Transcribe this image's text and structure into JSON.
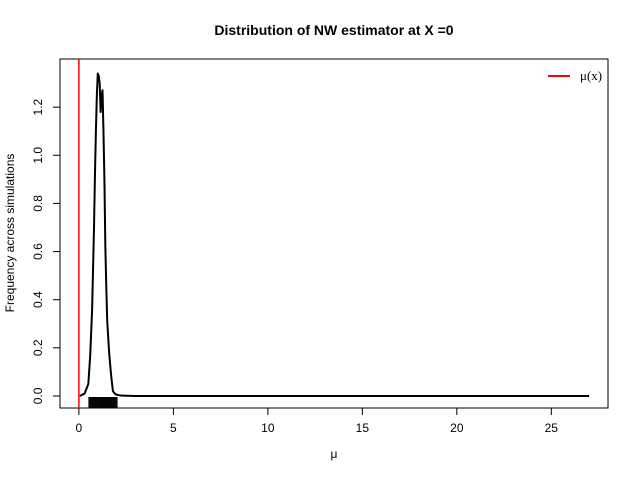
{
  "chart_data": {
    "type": "line",
    "title": "Distribution of NW estimator at X =0",
    "xlabel": "μ",
    "ylabel": "Frequency across simulations",
    "xlim": [
      -1,
      28
    ],
    "ylim": [
      -0.05,
      1.4
    ],
    "x_ticks": [
      0,
      5,
      10,
      15,
      20,
      25
    ],
    "y_ticks": [
      0.0,
      0.2,
      0.4,
      0.6,
      0.8,
      1.0,
      1.2
    ],
    "grid": false,
    "legend_position": "top-right",
    "series": [
      {
        "name": "",
        "color": "#000000",
        "x": [
          0.05,
          0.3,
          0.5,
          0.6,
          0.7,
          0.8,
          0.85,
          0.9,
          0.95,
          1.0,
          1.05,
          1.1,
          1.15,
          1.2,
          1.25,
          1.3,
          1.35,
          1.4,
          1.45,
          1.5,
          1.6,
          1.7,
          1.8,
          1.9,
          2.0,
          2.2,
          2.5,
          3.0,
          5.0,
          10.0,
          15.0,
          20.0,
          25.0,
          27.0
        ],
        "y": [
          0.0,
          0.01,
          0.05,
          0.17,
          0.36,
          0.7,
          0.92,
          1.1,
          1.25,
          1.34,
          1.33,
          1.3,
          1.18,
          1.25,
          1.27,
          1.1,
          0.9,
          0.62,
          0.45,
          0.31,
          0.18,
          0.09,
          0.02,
          0.01,
          0.005,
          0.002,
          0.001,
          0.0,
          0.0,
          0.0,
          0.0,
          0.0,
          0.0,
          0.0
        ]
      }
    ],
    "vline": {
      "x": 0,
      "color": "#ff0000",
      "label": "μ(x)"
    },
    "rug": [
      0.55,
      0.6,
      0.65,
      0.7,
      0.75,
      0.8,
      0.85,
      0.9,
      0.95,
      1.0,
      1.05,
      1.1,
      1.15,
      1.2,
      1.25,
      1.3,
      1.35,
      1.4,
      1.45,
      1.5,
      1.55,
      1.6,
      1.65,
      1.7,
      1.75,
      1.8,
      1.85,
      1.9,
      1.95,
      2.0
    ],
    "legend": [
      {
        "label": "μ(x)",
        "color": "#ff0000"
      }
    ]
  }
}
